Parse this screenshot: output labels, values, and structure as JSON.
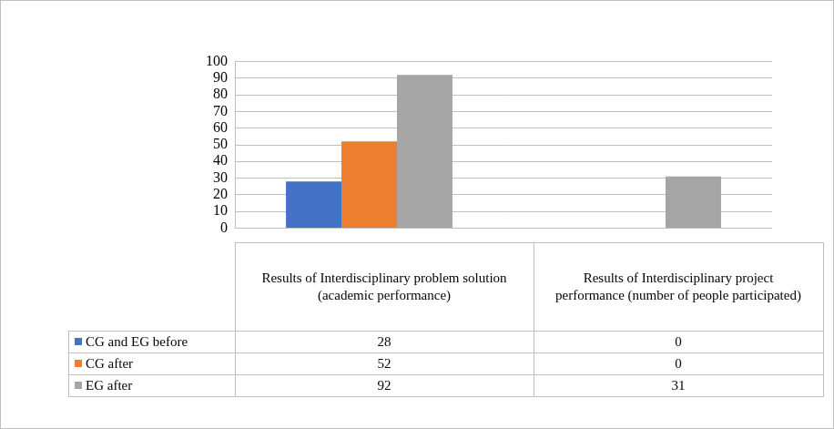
{
  "chart_data": {
    "type": "bar",
    "categories": [
      "Results of Interdisciplinary problem solution (academic performance)",
      "Results of Interdisciplinary project performance (number of people participated)"
    ],
    "series": [
      {
        "name": "CG and EG before",
        "color": "#4472c4",
        "values": [
          28,
          0
        ]
      },
      {
        "name": "CG after",
        "color": "#ed7d31",
        "values": [
          52,
          0
        ]
      },
      {
        "name": "EG after",
        "color": "#a5a5a5",
        "values": [
          92,
          31
        ]
      }
    ],
    "ylim": [
      0,
      100
    ],
    "yticks": [
      0,
      10,
      20,
      30,
      40,
      50,
      60,
      70,
      80,
      90,
      100
    ],
    "grid": true,
    "tick_labels": "y"
  }
}
